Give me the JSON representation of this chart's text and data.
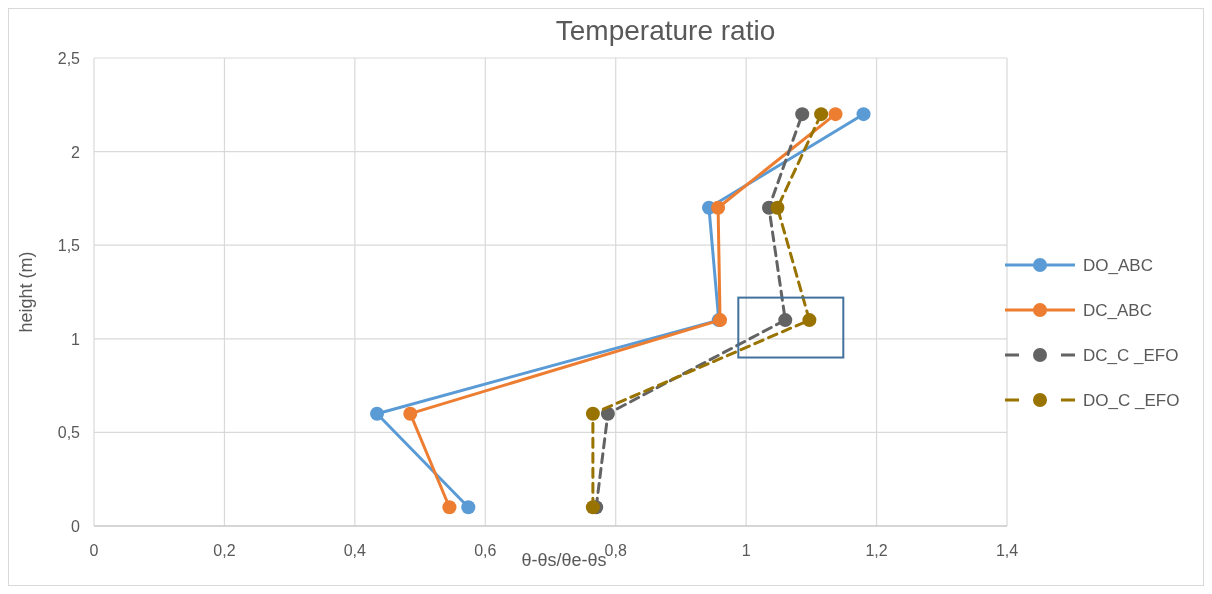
{
  "chart_data": {
    "type": "line",
    "title": "Temperature ratio",
    "xlabel": "θ-θs/θe-θs",
    "ylabel": "height (m)",
    "xlim": [
      0,
      1.4
    ],
    "xticks": [
      {
        "value": 0,
        "label": "0"
      },
      {
        "value": 0.2,
        "label": "0,2"
      },
      {
        "value": 0.4,
        "label": "0,4"
      },
      {
        "value": 0.6,
        "label": "0,6"
      },
      {
        "value": 0.8,
        "label": "0,8"
      },
      {
        "value": 1,
        "label": "1"
      },
      {
        "value": 1.2,
        "label": "1,2"
      },
      {
        "value": 1.4,
        "label": "1,4"
      }
    ],
    "ylim": [
      0,
      2.5
    ],
    "yticks": [
      {
        "value": 0,
        "label": "0"
      },
      {
        "value": 0.5,
        "label": "0,5"
      },
      {
        "value": 1,
        "label": "1"
      },
      {
        "value": 1.5,
        "label": "1,5"
      },
      {
        "value": 2,
        "label": "2"
      },
      {
        "value": 2.5,
        "label": "2,5"
      }
    ],
    "grid": true,
    "legend": "right",
    "marker": "circle",
    "series": [
      {
        "name": "DO_ABC",
        "color": "#5b9bd5",
        "line_style": "solid",
        "x": [
          0.574,
          0.434,
          0.958,
          0.943,
          1.18
        ],
        "values": [
          0.1,
          0.6,
          1.1,
          1.7,
          2.2
        ]
      },
      {
        "name": "DC_ABC",
        "color": "#ed7d31",
        "line_style": "solid",
        "x": [
          0.545,
          0.485,
          0.96,
          0.957,
          1.137
        ],
        "values": [
          0.1,
          0.6,
          1.1,
          1.7,
          2.2
        ]
      },
      {
        "name": "DC_C _EFO",
        "color": "#636363",
        "line_style": "dashed",
        "x": [
          0.77,
          0.788,
          1.06,
          1.035,
          1.086
        ],
        "values": [
          0.1,
          0.6,
          1.1,
          1.7,
          2.2
        ]
      },
      {
        "name": "DO_C _EFO",
        "color": "#997300",
        "line_style": "dashed",
        "x": [
          0.765,
          0.765,
          1.097,
          1.048,
          1.115
        ],
        "values": [
          0.1,
          0.6,
          1.1,
          1.7,
          2.2
        ]
      }
    ]
  }
}
